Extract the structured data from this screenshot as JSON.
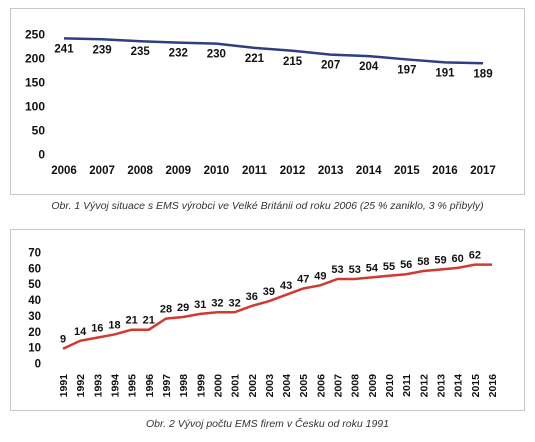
{
  "chart_data": [
    {
      "type": "line",
      "x": [
        "2006",
        "2007",
        "2008",
        "2009",
        "2010",
        "2011",
        "2012",
        "2013",
        "2014",
        "2015",
        "2016",
        "2017"
      ],
      "values": [
        241,
        239,
        235,
        232,
        230,
        221,
        215,
        207,
        204,
        197,
        191,
        189
      ],
      "ylim": [
        0,
        250
      ],
      "yticks": [
        0,
        50,
        100,
        150,
        200,
        250
      ],
      "grid": false,
      "color": "#2e3f7f",
      "caption": "Obr. 1  Vývoj situace s EMS výrobci  ve Velké Británii od roku 2006 (25 % zaniklo, 3 % přibyly)"
    },
    {
      "type": "line",
      "x": [
        "1991",
        "1992",
        "1993",
        "1994",
        "1995",
        "1996",
        "1997",
        "1998",
        "1999",
        "2000",
        "2001",
        "2002",
        "2003",
        "2004",
        "2005",
        "2006",
        "2007",
        "2008",
        "2009",
        "2010",
        "2011",
        "2012",
        "2013",
        "2014",
        "2015",
        "2016"
      ],
      "values": [
        9,
        14,
        16,
        18,
        21,
        21,
        28,
        29,
        31,
        32,
        32,
        36,
        39,
        43,
        47,
        49,
        53,
        53,
        54,
        55,
        56,
        58,
        59,
        60,
        62,
        62
      ],
      "labeled": [
        true,
        true,
        true,
        true,
        true,
        true,
        true,
        true,
        true,
        true,
        true,
        true,
        true,
        true,
        true,
        true,
        true,
        true,
        true,
        true,
        true,
        true,
        true,
        true,
        true,
        false
      ],
      "ylim": [
        0,
        70
      ],
      "yticks": [
        0,
        10,
        20,
        30,
        40,
        50,
        60,
        70
      ],
      "grid": false,
      "color": "#d13a30",
      "caption": "Obr. 2  Vývoj počtu EMS firem v Česku od roku 1991"
    }
  ]
}
